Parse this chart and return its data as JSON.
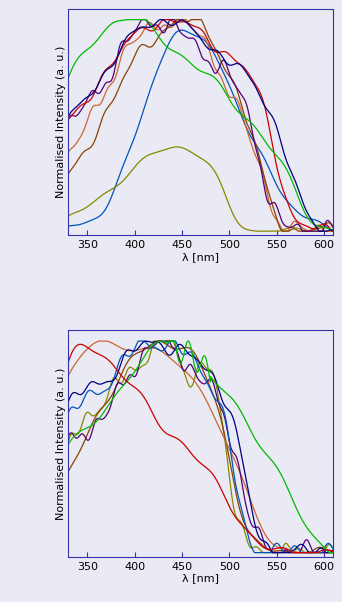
{
  "xlim": [
    330,
    610
  ],
  "ylim": [
    -0.02,
    1.05
  ],
  "xlabel": "λ [nm]",
  "ylabel": "Normalised Intensity (a. u.)",
  "top_colors": {
    "1a": "#000080",
    "2a": "#cc0000",
    "3a": "#0055bb",
    "4a": "#550077",
    "1b": "#00bb00",
    "2b": "#cc6633",
    "3b": "#884400",
    "4b": "#888800"
  },
  "bottom_colors": {
    "5a": "#000080",
    "6a": "#cc0000",
    "7a": "#0055bb",
    "8a": "#550077",
    "5b": "#00bb00",
    "6b": "#cc6633",
    "7b": "#884400",
    "8b": "#888800"
  },
  "bg_color": "#eaeaf5",
  "spine_color": "#3333aa",
  "tick_fontsize": 8,
  "label_fontsize": 8,
  "linewidth": 0.9
}
